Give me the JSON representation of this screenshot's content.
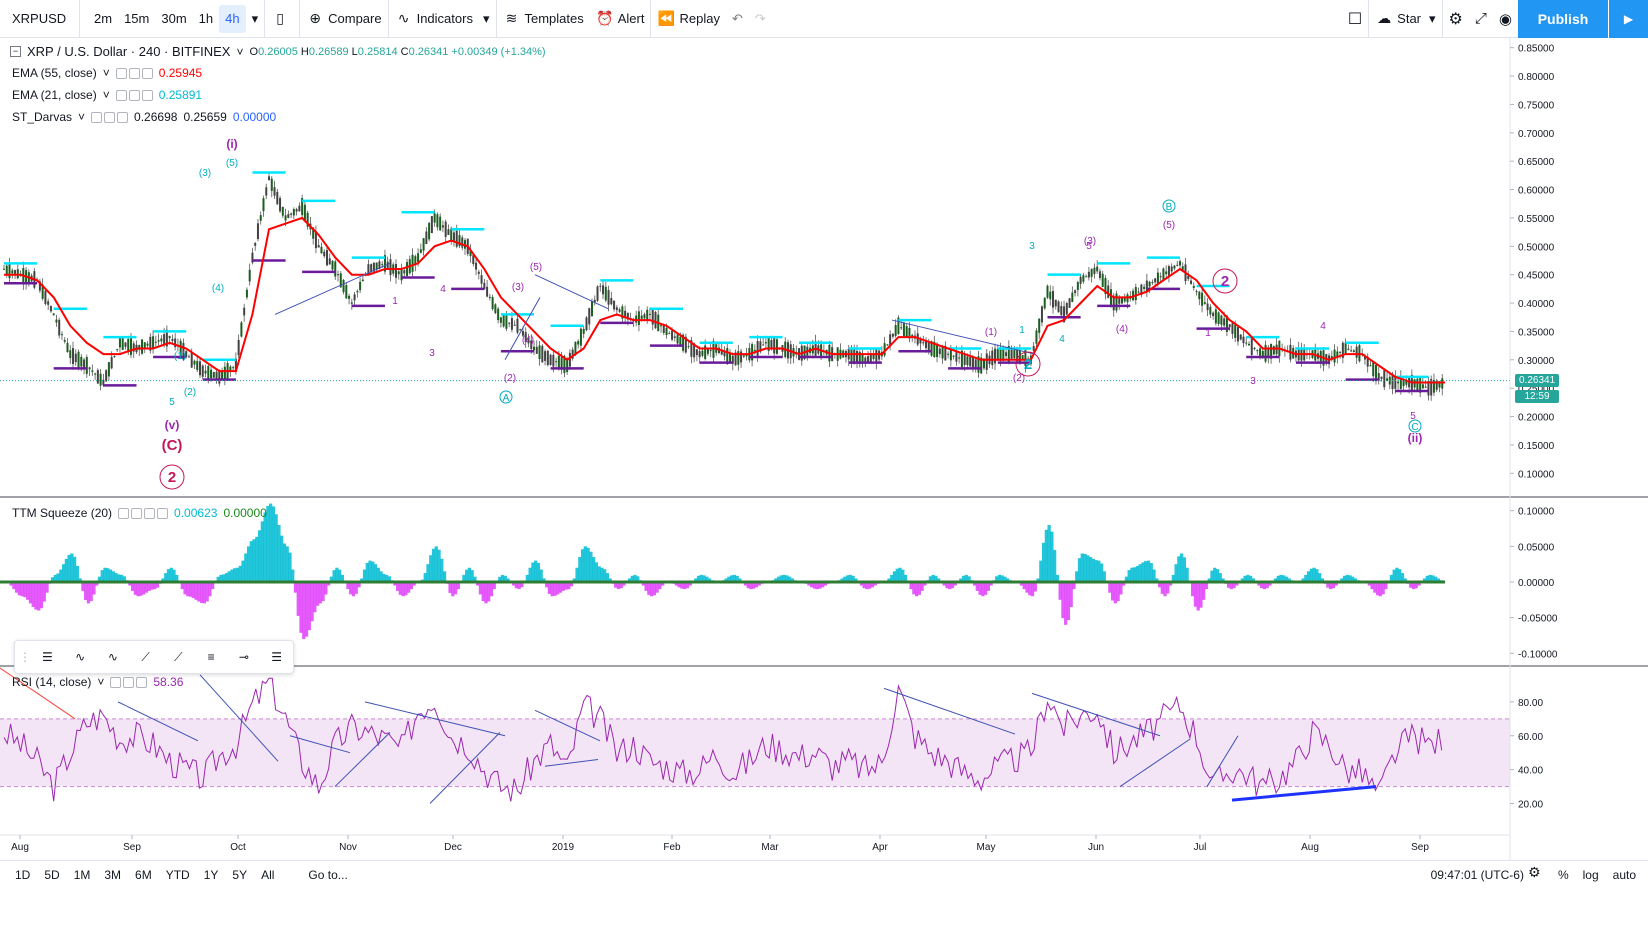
{
  "toolbar": {
    "symbol": "XRPUSD",
    "intervals": [
      "2m",
      "15m",
      "30m",
      "1h",
      "4h"
    ],
    "active_interval": "4h",
    "compare": "Compare",
    "indicators": "Indicators",
    "templates": "Templates",
    "alert": "Alert",
    "replay": "Replay",
    "star": "Star",
    "publish": "Publish"
  },
  "legend": {
    "title": "XRP / U.S. Dollar · 240 · BITFINEX",
    "o": "0.26005",
    "h": "0.26589",
    "l": "0.25814",
    "c": "0.26341",
    "o_label": "O",
    "h_label": "H",
    "l_label": "L",
    "c_label": "C",
    "change": "+0.00349 (+1.34%)",
    "ema55": "EMA (55, close)",
    "ema55_val": "0.25945",
    "ema21": "EMA (21, close)",
    "ema21_val": "0.25891",
    "darvas": "ST_Darvas",
    "darvas_v1": "0.26698",
    "darvas_v2": "0.25659",
    "darvas_v3": "0.00000",
    "ttm": "TTM Squeeze (20)",
    "ttm_v1": "0.00623",
    "ttm_v2": "0.00000",
    "rsi": "RSI (14, close)",
    "rsi_val": "58.36"
  },
  "badges": {
    "price": "0.26341",
    "timer": "12:59"
  },
  "bottombar": {
    "ranges": [
      "1D",
      "5D",
      "1M",
      "3M",
      "6M",
      "YTD",
      "1Y",
      "5Y",
      "All"
    ],
    "goto": "Go to...",
    "time": "09:47:01 (UTC-6)",
    "percent": "%",
    "log": "log",
    "auto": "auto"
  },
  "colors": {
    "ema": "#ff0000",
    "ema21": "#00bcd4",
    "darvas_top": "#00e5ff",
    "darvas_bottom": "#6a1b9a",
    "up": "#26a69a",
    "rsi": "#9c27b0",
    "wave": "#c2185b",
    "wave_cyan": "#00acc1"
  },
  "chart_data": [
    {
      "type": "line",
      "title": "XRP / U.S. Dollar · 240 · BITFINEX",
      "x_labels": [
        "Aug",
        "Sep",
        "Oct",
        "Nov",
        "Dec",
        "2019",
        "Feb",
        "Mar",
        "Apr",
        "May",
        "Jun",
        "Jul",
        "Aug",
        "Sep"
      ],
      "y_ticks": [
        0.1,
        0.15,
        0.2,
        0.25,
        0.3,
        0.35,
        0.4,
        0.45,
        0.5,
        0.55,
        0.6,
        0.65,
        0.7,
        0.75,
        0.8,
        0.85
      ],
      "ylim": [
        0.06,
        0.86
      ],
      "series": [
        {
          "name": "price",
          "values": [
            0.46,
            0.45,
            0.44,
            0.38,
            0.31,
            0.29,
            0.26,
            0.33,
            0.32,
            0.33,
            0.34,
            0.31,
            0.28,
            0.27,
            0.29,
            0.48,
            0.62,
            0.55,
            0.57,
            0.5,
            0.46,
            0.4,
            0.46,
            0.47,
            0.45,
            0.48,
            0.55,
            0.52,
            0.5,
            0.43,
            0.37,
            0.36,
            0.32,
            0.3,
            0.29,
            0.35,
            0.43,
            0.39,
            0.37,
            0.38,
            0.35,
            0.33,
            0.31,
            0.32,
            0.3,
            0.31,
            0.33,
            0.32,
            0.31,
            0.32,
            0.31,
            0.31,
            0.3,
            0.31,
            0.36,
            0.34,
            0.32,
            0.31,
            0.3,
            0.29,
            0.31,
            0.31,
            0.3,
            0.42,
            0.38,
            0.44,
            0.46,
            0.4,
            0.41,
            0.43,
            0.45,
            0.47,
            0.42,
            0.38,
            0.36,
            0.33,
            0.31,
            0.32,
            0.31,
            0.31,
            0.3,
            0.32,
            0.31,
            0.27,
            0.26,
            0.26,
            0.25,
            0.26
          ]
        },
        {
          "name": "EMA (55, close)",
          "values": [
            0.45,
            0.45,
            0.44,
            0.41,
            0.36,
            0.33,
            0.31,
            0.31,
            0.32,
            0.32,
            0.33,
            0.32,
            0.3,
            0.28,
            0.28,
            0.38,
            0.53,
            0.54,
            0.55,
            0.52,
            0.48,
            0.45,
            0.45,
            0.46,
            0.46,
            0.47,
            0.5,
            0.51,
            0.5,
            0.46,
            0.41,
            0.38,
            0.35,
            0.32,
            0.3,
            0.32,
            0.37,
            0.38,
            0.37,
            0.37,
            0.36,
            0.34,
            0.32,
            0.32,
            0.31,
            0.31,
            0.32,
            0.32,
            0.31,
            0.32,
            0.31,
            0.31,
            0.31,
            0.31,
            0.34,
            0.34,
            0.33,
            0.32,
            0.31,
            0.3,
            0.3,
            0.3,
            0.3,
            0.36,
            0.37,
            0.4,
            0.43,
            0.41,
            0.41,
            0.42,
            0.44,
            0.46,
            0.44,
            0.4,
            0.37,
            0.35,
            0.32,
            0.32,
            0.31,
            0.31,
            0.3,
            0.31,
            0.31,
            0.29,
            0.27,
            0.26,
            0.26,
            0.26
          ]
        }
      ],
      "wave_labels": [
        "(i)",
        "(5)",
        "(3)",
        "(4)",
        "(1)",
        "(2)",
        "5",
        "(v)",
        "(C)",
        "2",
        "4",
        "3",
        "1",
        "(5)",
        "(3)",
        "(4)",
        "(2)",
        "A",
        "(1)",
        "(2)",
        "3",
        "5",
        "4",
        "1",
        "2",
        "B",
        "(5)",
        "(3)",
        "(4)",
        "2",
        "1",
        "3",
        "4",
        "5",
        "C",
        "(ii)"
      ]
    },
    {
      "type": "bar",
      "title": "TTM Squeeze (20)",
      "y_ticks": [
        -0.1,
        -0.05,
        0.0,
        0.05,
        0.1
      ],
      "ylim": [
        -0.115,
        0.115
      ],
      "values": [
        0.0,
        -0.02,
        -0.04,
        0.01,
        0.04,
        -0.03,
        0.02,
        0.01,
        -0.02,
        -0.01,
        0.02,
        -0.02,
        -0.03,
        0.01,
        0.02,
        0.06,
        0.11,
        0.05,
        -0.08,
        -0.03,
        0.02,
        -0.02,
        0.03,
        0.01,
        -0.02,
        0.0,
        0.05,
        -0.02,
        0.02,
        -0.03,
        0.01,
        -0.01,
        0.03,
        -0.02,
        -0.01,
        0.05,
        0.02,
        -0.01,
        0.01,
        -0.02,
        0.0,
        -0.01,
        0.01,
        0.0,
        0.01,
        -0.01,
        0.0,
        0.01,
        0.0,
        -0.01,
        0.0,
        0.01,
        -0.01,
        0.0,
        0.02,
        -0.02,
        0.01,
        -0.01,
        0.01,
        -0.02,
        0.01,
        0.0,
        -0.02,
        0.08,
        -0.06,
        0.04,
        0.03,
        -0.03,
        0.02,
        0.03,
        -0.02,
        0.04,
        -0.04,
        0.02,
        -0.01,
        0.01,
        -0.01,
        0.01,
        0.0,
        0.02,
        -0.01,
        0.01,
        0.0,
        -0.02,
        0.02,
        -0.01,
        0.01,
        0.0
      ]
    },
    {
      "type": "line",
      "title": "RSI (14, close)",
      "y_ticks": [
        20,
        40,
        60,
        80
      ],
      "ylim": [
        2,
        100
      ],
      "band": [
        30,
        70
      ],
      "values": [
        62,
        55,
        45,
        30,
        50,
        68,
        72,
        58,
        60,
        55,
        45,
        40,
        35,
        48,
        55,
        78,
        92,
        70,
        45,
        30,
        55,
        65,
        62,
        58,
        52,
        75,
        82,
        60,
        55,
        40,
        30,
        28,
        45,
        55,
        40,
        78,
        70,
        50,
        55,
        45,
        42,
        38,
        40,
        50,
        38,
        45,
        55,
        52,
        48,
        50,
        42,
        45,
        40,
        44,
        88,
        60,
        50,
        45,
        38,
        35,
        42,
        46,
        50,
        84,
        65,
        72,
        76,
        50,
        56,
        62,
        70,
        78,
        60,
        30,
        40,
        38,
        30,
        35,
        45,
        62,
        55,
        40,
        38,
        25,
        50,
        60,
        55,
        58
      ]
    }
  ]
}
